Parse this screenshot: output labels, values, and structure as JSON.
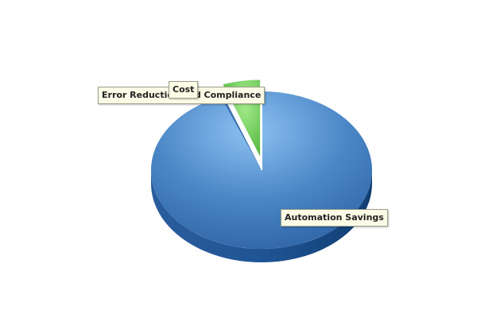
{
  "chart_data": {
    "type": "pie",
    "title": "",
    "style": "3d-exploded",
    "slices": [
      {
        "label": "Automation Savings",
        "value": 94.0,
        "color": "#4a86c6"
      },
      {
        "label": "Cost",
        "value": 0.4,
        "color": "#3a6fb0"
      },
      {
        "label": "Error Reduction and Compliance",
        "value": 5.6,
        "color": "#5cc24a"
      }
    ],
    "legend": "none"
  }
}
